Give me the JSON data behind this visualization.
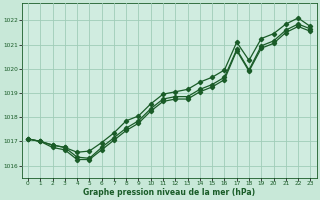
{
  "xlabel": "Graphe pression niveau de la mer (hPa)",
  "background_color": "#c8e8d8",
  "plot_bg_color": "#d0ece0",
  "grid_color": "#a0ccb8",
  "line_color": "#1a5c28",
  "xlim": [
    -0.5,
    23.5
  ],
  "ylim": [
    1015.5,
    1022.7
  ],
  "yticks": [
    1016,
    1017,
    1018,
    1019,
    1020,
    1021,
    1022
  ],
  "xticks": [
    0,
    1,
    2,
    3,
    4,
    5,
    6,
    7,
    8,
    9,
    10,
    11,
    12,
    13,
    14,
    15,
    16,
    17,
    18,
    19,
    20,
    21,
    22,
    23
  ],
  "series1": [
    1017.1,
    1017.0,
    1016.85,
    1016.75,
    1016.35,
    1016.3,
    1016.75,
    1017.15,
    1017.55,
    1017.85,
    1018.35,
    1018.75,
    1018.85,
    1018.85,
    1019.15,
    1019.35,
    1019.65,
    1020.8,
    1019.95,
    1020.95,
    1021.15,
    1021.6,
    1021.85,
    1021.65
  ],
  "series2": [
    1017.1,
    1017.0,
    1016.85,
    1016.75,
    1016.55,
    1016.6,
    1016.95,
    1017.35,
    1017.85,
    1018.05,
    1018.55,
    1018.95,
    1019.05,
    1019.15,
    1019.45,
    1019.65,
    1019.95,
    1021.1,
    1020.35,
    1021.25,
    1021.45,
    1021.85,
    1022.1,
    1021.75
  ],
  "series3": [
    1017.1,
    1017.0,
    1016.75,
    1016.65,
    1016.25,
    1016.25,
    1016.65,
    1017.05,
    1017.45,
    1017.75,
    1018.25,
    1018.65,
    1018.75,
    1018.75,
    1019.05,
    1019.25,
    1019.55,
    1020.75,
    1019.9,
    1020.85,
    1021.05,
    1021.5,
    1021.75,
    1021.55
  ],
  "marker_style": "D",
  "marker_size": 2.2,
  "line_width": 0.9,
  "tick_fontsize": 4.2,
  "xlabel_fontsize": 5.5
}
